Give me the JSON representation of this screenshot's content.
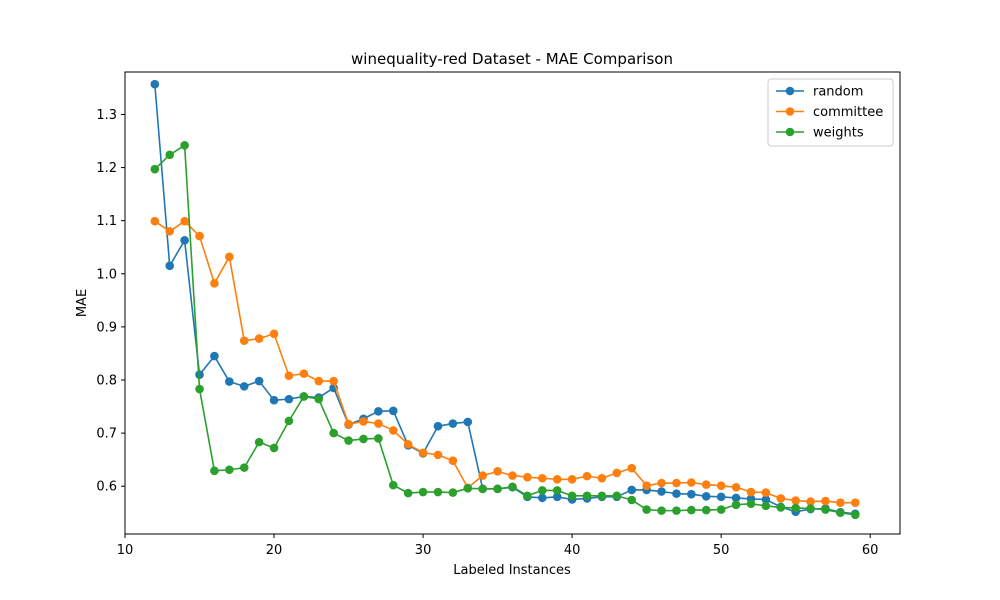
{
  "chart_data": {
    "type": "line",
    "title": "winequality-red Dataset - MAE Comparison",
    "xlabel": "Labeled Instances",
    "ylabel": "MAE",
    "xlim": [
      10,
      62
    ],
    "ylim": [
      0.51,
      1.38
    ],
    "x_ticks": [
      10,
      20,
      30,
      40,
      50,
      60
    ],
    "y_ticks": [
      0.6,
      0.7,
      0.8,
      0.9,
      1.0,
      1.1,
      1.2,
      1.3
    ],
    "y_tick_labels": [
      "0.6",
      "0.7",
      "0.8",
      "0.9",
      "1.0",
      "1.1",
      "1.2",
      "1.3"
    ],
    "grid": false,
    "legend_position": "top-right",
    "x": [
      12,
      13,
      14,
      15,
      16,
      17,
      18,
      19,
      20,
      21,
      22,
      23,
      24,
      25,
      26,
      27,
      28,
      29,
      30,
      31,
      32,
      33,
      34,
      35,
      36,
      37,
      38,
      39,
      40,
      41,
      42,
      43,
      44,
      45,
      46,
      47,
      48,
      49,
      50,
      51,
      52,
      53,
      54,
      55,
      56,
      57,
      58,
      59
    ],
    "series": [
      {
        "name": "random",
        "color": "#1f77b4",
        "values": [
          1.357,
          1.015,
          1.063,
          0.81,
          0.845,
          0.797,
          0.788,
          0.798,
          0.762,
          0.764,
          0.769,
          0.767,
          0.785,
          0.716,
          0.727,
          0.741,
          0.742,
          0.677,
          0.662,
          0.713,
          0.718,
          0.721,
          0.595,
          0.595,
          0.598,
          0.58,
          0.578,
          0.58,
          0.575,
          0.577,
          0.58,
          0.58,
          0.593,
          0.593,
          0.59,
          0.586,
          0.585,
          0.581,
          0.58,
          0.578,
          0.576,
          0.575,
          0.561,
          0.552,
          0.557,
          0.558,
          0.551,
          0.548
        ]
      },
      {
        "name": "committee",
        "color": "#ff7f0e",
        "values": [
          1.099,
          1.08,
          1.099,
          1.071,
          0.982,
          1.032,
          0.874,
          0.878,
          0.887,
          0.808,
          0.812,
          0.798,
          0.798,
          0.717,
          0.722,
          0.718,
          0.705,
          0.679,
          0.663,
          0.659,
          0.648,
          0.597,
          0.62,
          0.628,
          0.62,
          0.617,
          0.615,
          0.613,
          0.613,
          0.619,
          0.615,
          0.625,
          0.634,
          0.601,
          0.606,
          0.606,
          0.607,
          0.603,
          0.601,
          0.598,
          0.589,
          0.588,
          0.577,
          0.573,
          0.571,
          0.572,
          0.569,
          0.569
        ]
      },
      {
        "name": "weights",
        "color": "#2ca02c",
        "values": [
          1.197,
          1.224,
          1.242,
          0.783,
          0.629,
          0.631,
          0.635,
          0.683,
          0.672,
          0.723,
          0.769,
          0.764,
          0.7,
          0.686,
          0.689,
          0.69,
          0.602,
          0.587,
          0.589,
          0.589,
          0.588,
          0.596,
          0.595,
          0.595,
          0.599,
          0.582,
          0.592,
          0.592,
          0.582,
          0.582,
          0.582,
          0.582,
          0.574,
          0.556,
          0.554,
          0.554,
          0.555,
          0.555,
          0.556,
          0.565,
          0.567,
          0.563,
          0.56,
          0.559,
          0.558,
          0.556,
          0.55,
          0.546
        ]
      }
    ]
  }
}
